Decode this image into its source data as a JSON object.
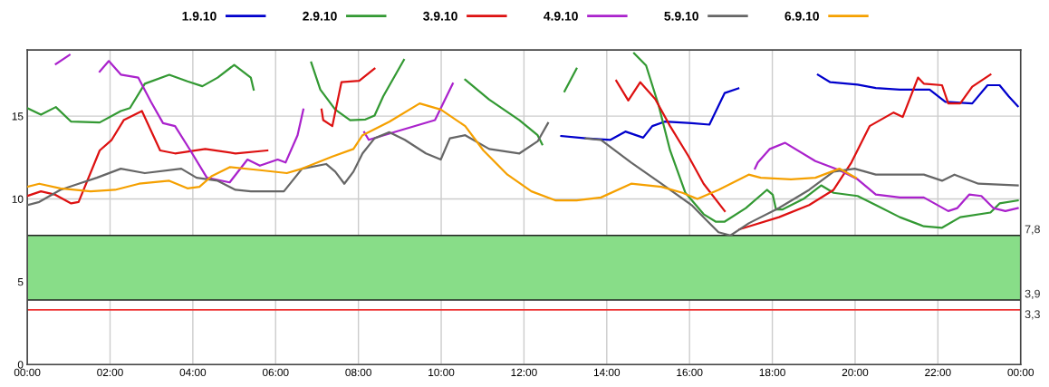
{
  "chart_data": {
    "type": "line",
    "legend": "top",
    "grid": true,
    "marker": "none",
    "line_style": "solid",
    "xlim": [
      0,
      24
    ],
    "ylim": [
      0,
      19
    ],
    "xticks": [
      {
        "value": 0,
        "label": "00:00"
      },
      {
        "value": 2,
        "label": "02:00"
      },
      {
        "value": 4,
        "label": "04:00"
      },
      {
        "value": 6,
        "label": "06:00"
      },
      {
        "value": 8,
        "label": "08:00"
      },
      {
        "value": 10,
        "label": "10:00"
      },
      {
        "value": 12,
        "label": "12:00"
      },
      {
        "value": 14,
        "label": "14:00"
      },
      {
        "value": 16,
        "label": "16:00"
      },
      {
        "value": 18,
        "label": "18:00"
      },
      {
        "value": 20,
        "label": "20:00"
      },
      {
        "value": 22,
        "label": "22:00"
      },
      {
        "value": 24,
        "label": "00:00"
      }
    ],
    "yticks": [
      0,
      5,
      10,
      15
    ],
    "bands": [
      {
        "axis": "y",
        "from": 3.9,
        "to": 7.8,
        "label": null,
        "color": "#88dd88"
      }
    ],
    "ref_lines": [
      {
        "axis": "y",
        "value": 7.8,
        "label": "7,8",
        "color": "#222222"
      },
      {
        "axis": "y",
        "value": 3.9,
        "label": "3,9",
        "color": "#222222"
      },
      {
        "axis": "y",
        "value": 3.3,
        "label": "3,3",
        "color": "#ee3333"
      }
    ],
    "series": [
      {
        "name": "1.9.10",
        "color": "#0000cc",
        "x": [
          12.9,
          13.5,
          14.09,
          14.45,
          14.88,
          15.1,
          15.4,
          16.05,
          16.48,
          16.85,
          17.18,
          17.8,
          19.1,
          19.4,
          20.06,
          20.5,
          21.08,
          21.8,
          22.18,
          22.83,
          23.2,
          23.49,
          23.71,
          23.93
        ],
        "values": [
          13.8,
          13.66,
          13.57,
          14.07,
          13.7,
          14.4,
          14.67,
          14.58,
          14.49,
          16.4,
          16.68,
          null,
          17.5,
          17.05,
          16.9,
          16.7,
          16.6,
          16.6,
          15.86,
          15.77,
          16.87,
          16.87,
          16.2,
          15.6
        ]
      },
      {
        "name": "2.9.10",
        "color": "#339933",
        "x": [
          0,
          0.33,
          0.69,
          1.06,
          1.75,
          2.26,
          2.48,
          2.84,
          3.43,
          3.87,
          4.23,
          4.6,
          5.0,
          5.4,
          5.47,
          6.1,
          6.86,
          7.08,
          7.44,
          7.8,
          8.17,
          8.39,
          8.6,
          9.1,
          9.5,
          10.58,
          11.16,
          11.89,
          12.33,
          12.44,
          12.7,
          12.98,
          13.27,
          14.1,
          14.66,
          14.95,
          15.25,
          15.53,
          15.9,
          16.34,
          16.63,
          16.85,
          17.36,
          17.87,
          18.01,
          18.09,
          18.24,
          18.75,
          19.18,
          19.48,
          20.06,
          20.5,
          21.08,
          21.66,
          22.1,
          22.54,
          23.27,
          23.49,
          23.93
        ],
        "values": [
          15.49,
          15.09,
          15.55,
          14.67,
          14.62,
          15.31,
          15.49,
          16.96,
          17.5,
          17.1,
          16.81,
          17.33,
          18.1,
          17.33,
          16.6,
          null,
          18.24,
          16.6,
          15.4,
          14.76,
          14.8,
          15.04,
          16.2,
          18.4,
          null,
          17.2,
          16.0,
          14.76,
          13.85,
          13.3,
          null,
          16.5,
          17.87,
          null,
          18.8,
          18.06,
          15.68,
          12.93,
          10.37,
          9.08,
          8.63,
          8.63,
          9.45,
          10.55,
          10.26,
          9.36,
          9.36,
          10.0,
          10.82,
          10.37,
          10.18,
          9.63,
          8.9,
          8.35,
          8.26,
          8.9,
          9.18,
          9.73,
          9.91
        ]
      },
      {
        "name": "3.9.10",
        "color": "#dd1111",
        "x": [
          0,
          0.33,
          0.66,
          1.06,
          1.24,
          1.75,
          2.04,
          2.33,
          2.77,
          3.21,
          3.57,
          4.3,
          5.03,
          5.8,
          6.5,
          7.11,
          7.15,
          7.37,
          7.59,
          8.02,
          8.39,
          11.0,
          14.23,
          14.52,
          14.81,
          15.17,
          15.53,
          15.97,
          16.34,
          16.85,
          17.0,
          17.21,
          18.16,
          18.89,
          19.48,
          19.91,
          20.35,
          20.93,
          21.15,
          21.52,
          21.66,
          22.1,
          22.25,
          22.54,
          22.83,
          23.27
        ],
        "values": [
          10.18,
          10.46,
          10.27,
          9.73,
          9.82,
          12.93,
          13.57,
          14.76,
          15.31,
          12.93,
          12.75,
          13.02,
          12.75,
          12.93,
          null,
          15.4,
          14.76,
          14.4,
          17.05,
          17.14,
          17.87,
          null,
          17.14,
          15.95,
          17.05,
          16.04,
          14.4,
          12.6,
          10.92,
          9.27,
          null,
          8.17,
          8.9,
          9.63,
          10.55,
          12.2,
          14.4,
          15.22,
          14.95,
          17.33,
          16.96,
          16.87,
          15.77,
          15.77,
          16.78,
          17.51
        ]
      },
      {
        "name": "4.9.10",
        "color": "#aa22cc",
        "x": [
          0.69,
          1.02,
          1.3,
          1.75,
          1.97,
          2.26,
          2.68,
          2.99,
          3.28,
          3.57,
          3.94,
          4.34,
          4.89,
          5.32,
          5.62,
          6.05,
          6.24,
          6.53,
          6.67,
          7.4,
          8.14,
          8.25,
          8.98,
          9.85,
          10.28,
          14.0,
          17.58,
          17.65,
          17.94,
          18.31,
          19.04,
          19.62,
          20.06,
          20.5,
          21.08,
          21.66,
          22.25,
          22.47,
          22.76,
          23.05,
          23.34,
          23.63,
          23.93
        ],
        "values": [
          18.15,
          18.7,
          null,
          17.69,
          18.33,
          17.51,
          17.33,
          15.86,
          14.58,
          14.4,
          12.93,
          11.28,
          11.0,
          12.38,
          12.01,
          12.38,
          12.2,
          13.85,
          15.4,
          null,
          14.03,
          13.57,
          14.12,
          14.76,
          16.96,
          null,
          11.83,
          12.2,
          13.02,
          13.39,
          12.29,
          11.74,
          11.19,
          10.27,
          10.09,
          10.09,
          9.27,
          9.45,
          10.27,
          10.18,
          9.45,
          9.27,
          9.45
        ]
      },
      {
        "name": "5.9.10",
        "color": "#666666",
        "x": [
          0,
          0.29,
          0.8,
          1.24,
          1.68,
          2.26,
          2.84,
          3.72,
          4.09,
          4.6,
          5.03,
          5.4,
          6.2,
          6.64,
          7.22,
          7.44,
          7.66,
          7.88,
          8.1,
          8.39,
          8.75,
          9.12,
          9.63,
          9.99,
          10.21,
          10.58,
          11.16,
          11.89,
          12.33,
          12.58,
          13.0,
          13.49,
          13.86,
          14.59,
          15.32,
          16.05,
          16.41,
          16.7,
          16.99,
          17.43,
          18.16,
          18.89,
          19.48,
          19.99,
          20.5,
          21.08,
          21.66,
          22.1,
          22.4,
          22.98,
          23.93
        ],
        "values": [
          9.63,
          9.82,
          10.55,
          10.92,
          11.28,
          11.83,
          11.56,
          11.83,
          11.28,
          11.1,
          10.55,
          10.46,
          10.46,
          11.83,
          12.11,
          11.65,
          10.92,
          11.65,
          12.75,
          13.66,
          14.03,
          13.57,
          12.75,
          12.38,
          13.66,
          13.85,
          13.02,
          12.75,
          13.48,
          14.58,
          null,
          13.66,
          13.57,
          12.2,
          10.92,
          9.63,
          8.72,
          7.99,
          7.8,
          8.53,
          9.45,
          10.55,
          11.65,
          11.83,
          11.47,
          11.47,
          11.47,
          11.1,
          11.47,
          10.92,
          10.82
        ]
      },
      {
        "name": "6.9.10",
        "color": "#f5a000",
        "x": [
          0,
          0.29,
          0.8,
          1.53,
          2.12,
          2.7,
          3.43,
          3.87,
          4.16,
          4.45,
          4.89,
          5.62,
          6.27,
          6.64,
          7.37,
          7.88,
          8.1,
          8.75,
          9.48,
          9.99,
          10.58,
          11.02,
          11.6,
          12.18,
          12.77,
          13.27,
          13.86,
          14.59,
          15.32,
          15.83,
          16.19,
          16.7,
          17.43,
          17.72,
          18.45,
          19.04,
          19.62,
          20.02
        ],
        "values": [
          10.73,
          10.92,
          10.64,
          10.46,
          10.55,
          10.92,
          11.1,
          10.64,
          10.73,
          11.37,
          11.92,
          11.74,
          11.56,
          11.83,
          12.56,
          13.02,
          13.85,
          14.67,
          15.77,
          15.4,
          14.4,
          12.93,
          11.47,
          10.46,
          9.91,
          9.91,
          10.09,
          10.92,
          10.73,
          10.37,
          10.0,
          10.55,
          11.47,
          11.28,
          11.19,
          11.28,
          11.83,
          11.28
        ]
      }
    ]
  }
}
